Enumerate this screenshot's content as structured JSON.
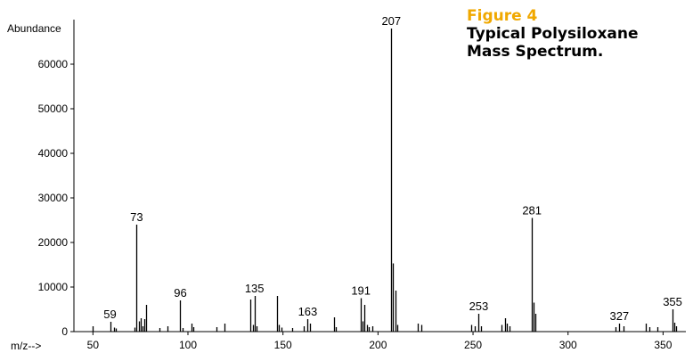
{
  "figure": {
    "number": "Figure 4",
    "caption_line1": "Typical Polysiloxane",
    "caption_line2": "Mass Spectrum."
  },
  "colors": {
    "bars": "#000000",
    "figure_number": "#f0a800"
  },
  "chart_data": {
    "type": "bar",
    "title": "Typical Polysiloxane Mass Spectrum.",
    "ylabel": "Abundance",
    "xlabel": "m/z-->",
    "xlim": [
      40,
      362
    ],
    "ylim": [
      0,
      70000
    ],
    "xticks": [
      50,
      100,
      150,
      200,
      250,
      300,
      350
    ],
    "yticks": [
      0,
      10000,
      20000,
      30000,
      40000,
      50000,
      60000
    ],
    "grid": false,
    "peaks": [
      {
        "x": 50,
        "y": 1200
      },
      {
        "x": 59,
        "y": 2200
      },
      {
        "x": 61,
        "y": 900
      },
      {
        "x": 62,
        "y": 700
      },
      {
        "x": 72,
        "y": 900
      },
      {
        "x": 73,
        "y": 24000
      },
      {
        "x": 74,
        "y": 2300
      },
      {
        "x": 75,
        "y": 3000
      },
      {
        "x": 76,
        "y": 1200
      },
      {
        "x": 77,
        "y": 2800
      },
      {
        "x": 78,
        "y": 6000
      },
      {
        "x": 85,
        "y": 800
      },
      {
        "x": 89,
        "y": 1200
      },
      {
        "x": 96,
        "y": 7000
      },
      {
        "x": 97,
        "y": 800
      },
      {
        "x": 102,
        "y": 1800
      },
      {
        "x": 103,
        "y": 1000
      },
      {
        "x": 115,
        "y": 1000
      },
      {
        "x": 119,
        "y": 1800
      },
      {
        "x": 133,
        "y": 7200
      },
      {
        "x": 134,
        "y": 1500
      },
      {
        "x": 135,
        "y": 8000
      },
      {
        "x": 136,
        "y": 1200
      },
      {
        "x": 147,
        "y": 8000
      },
      {
        "x": 148,
        "y": 1500
      },
      {
        "x": 149,
        "y": 900
      },
      {
        "x": 155,
        "y": 800
      },
      {
        "x": 161,
        "y": 1200
      },
      {
        "x": 163,
        "y": 2800
      },
      {
        "x": 164,
        "y": 1800
      },
      {
        "x": 177,
        "y": 3200
      },
      {
        "x": 178,
        "y": 1000
      },
      {
        "x": 191,
        "y": 7500
      },
      {
        "x": 192,
        "y": 2300
      },
      {
        "x": 193,
        "y": 6000
      },
      {
        "x": 194,
        "y": 1500
      },
      {
        "x": 195,
        "y": 1000
      },
      {
        "x": 197,
        "y": 1200
      },
      {
        "x": 207,
        "y": 68000
      },
      {
        "x": 208,
        "y": 15300
      },
      {
        "x": 209,
        "y": 9200
      },
      {
        "x": 210,
        "y": 1500
      },
      {
        "x": 221,
        "y": 1800
      },
      {
        "x": 223,
        "y": 1500
      },
      {
        "x": 249,
        "y": 1500
      },
      {
        "x": 251,
        "y": 1200
      },
      {
        "x": 253,
        "y": 4000
      },
      {
        "x": 254,
        "y": 1200
      },
      {
        "x": 265,
        "y": 1500
      },
      {
        "x": 267,
        "y": 3000
      },
      {
        "x": 268,
        "y": 1800
      },
      {
        "x": 269,
        "y": 1200
      },
      {
        "x": 281,
        "y": 25500
      },
      {
        "x": 282,
        "y": 6500
      },
      {
        "x": 283,
        "y": 4000
      },
      {
        "x": 325,
        "y": 1000
      },
      {
        "x": 327,
        "y": 1800
      },
      {
        "x": 329,
        "y": 1200
      },
      {
        "x": 341,
        "y": 1800
      },
      {
        "x": 343,
        "y": 1000
      },
      {
        "x": 347,
        "y": 1000
      },
      {
        "x": 355,
        "y": 5000
      },
      {
        "x": 356,
        "y": 2000
      },
      {
        "x": 357,
        "y": 1200
      }
    ],
    "peak_labels": [
      {
        "x": 59,
        "y": 2200,
        "text": "59"
      },
      {
        "x": 73,
        "y": 24000,
        "text": "73"
      },
      {
        "x": 96,
        "y": 7000,
        "text": "96"
      },
      {
        "x": 135,
        "y": 8000,
        "text": "135"
      },
      {
        "x": 163,
        "y": 2800,
        "text": "163"
      },
      {
        "x": 191,
        "y": 7500,
        "text": "191"
      },
      {
        "x": 207,
        "y": 68000,
        "text": "207"
      },
      {
        "x": 253,
        "y": 4000,
        "text": "253"
      },
      {
        "x": 281,
        "y": 25500,
        "text": "281"
      },
      {
        "x": 327,
        "y": 1800,
        "text": "327"
      },
      {
        "x": 355,
        "y": 5000,
        "text": "355"
      }
    ]
  }
}
